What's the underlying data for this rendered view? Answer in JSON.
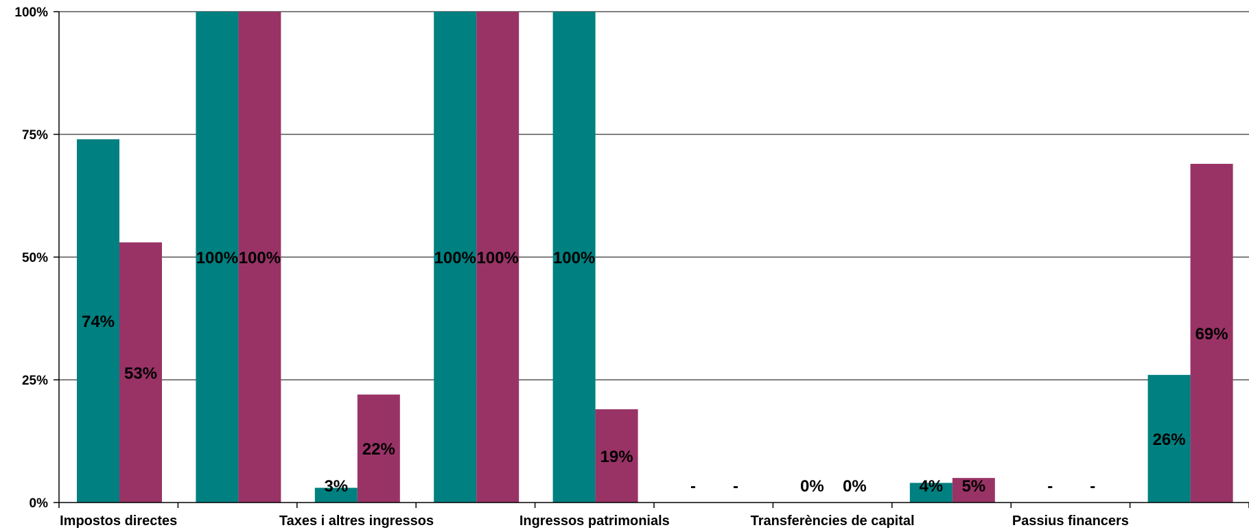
{
  "chart_data": {
    "type": "bar",
    "ylim": [
      0,
      100
    ],
    "y_ticks": [
      "0%",
      "25%",
      "50%",
      "75%",
      "100%"
    ],
    "grid": true,
    "colors": [
      "#008080",
      "#993366"
    ],
    "category_labels": [
      "Impostos directes",
      "Taxes i altres ingressos",
      "Ingressos patrimonials",
      "Transferències de capital",
      "Passius financers"
    ],
    "n_groups": 10,
    "series": [
      {
        "values": [
          74,
          100,
          3,
          100,
          100,
          0,
          0,
          4,
          0,
          26
        ],
        "labels": [
          "74%",
          "100%",
          "3%",
          "100%",
          "100%",
          "-",
          "0%",
          "4%",
          "-",
          "26%"
        ]
      },
      {
        "values": [
          53,
          100,
          22,
          100,
          19,
          0,
          0,
          5,
          0,
          69
        ],
        "labels": [
          "53%",
          "100%",
          "22%",
          "100%",
          "19%",
          "-",
          "0%",
          "5%",
          "-",
          "69%"
        ]
      }
    ]
  }
}
